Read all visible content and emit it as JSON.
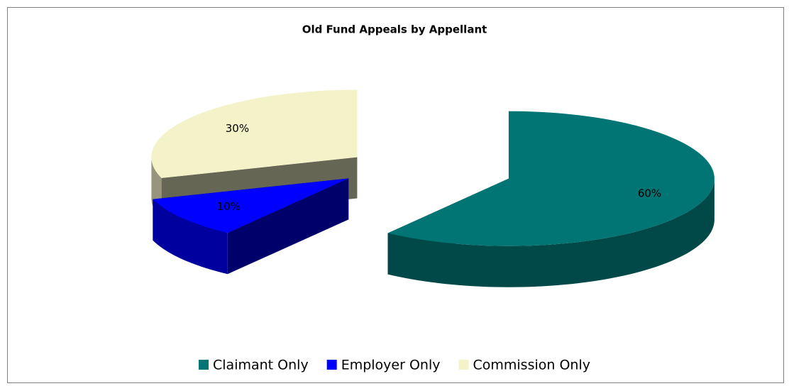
{
  "chart_data": {
    "type": "pie3d",
    "title": "Old Fund Appeals by Appellant",
    "categories": [
      "Claimant Only",
      "Employer Only",
      "Commission Only"
    ],
    "values": [
      60,
      10,
      30
    ],
    "value_labels": [
      "60%",
      "10%",
      "30%"
    ],
    "colors": [
      "#007574",
      "#0000ff",
      "#f3f2c8"
    ],
    "legend": "bottom"
  }
}
